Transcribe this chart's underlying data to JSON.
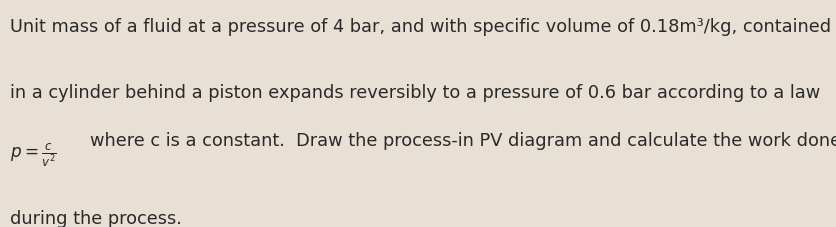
{
  "line1": "Unit mass of a fluid at a pressure of 4 bar, and with specific volume of 0.18m³/kg, contained",
  "line2": "in a cylinder behind a piston expands reversibly to a pressure of 0.6 bar according to a law",
  "line3_post": "where c is a constant.  Draw the process-in PV diagram and calculate the work done",
  "line4": "during the process.",
  "bg_color": "#e8e0d4",
  "text_color": "#2a2a2a",
  "fontsize": 12.8,
  "fontfamily": "DejaVu Sans"
}
